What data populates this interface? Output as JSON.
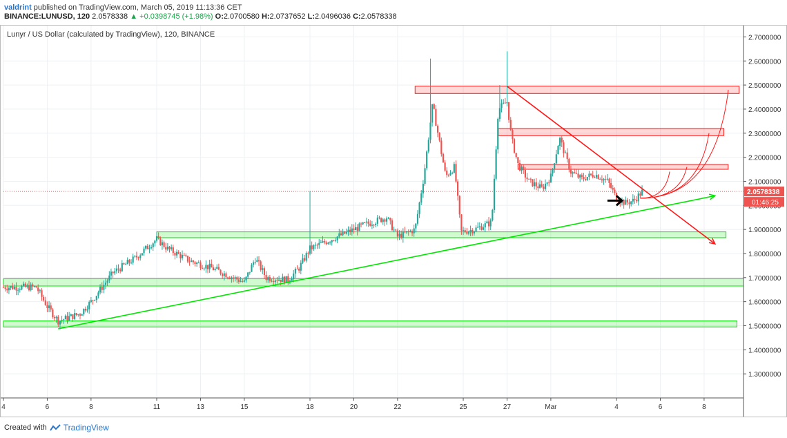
{
  "header": {
    "user": "valdrint",
    "published_text": "published on TradingView.com, March 05, 2019 11:13:36 CET",
    "symbol": "BINANCE:LUNUSD, 120",
    "last": "2.0578338",
    "change": "+0.0398745 (+1.98%)",
    "open_label": "O:",
    "open": "2.0700580",
    "high_label": "H:",
    "high": "2.0737652",
    "low_label": "L:",
    "low": "2.0496036",
    "close_label": "C:",
    "close": "2.0578338"
  },
  "chart_data": {
    "type": "candlestick",
    "title": "Lunyr / US Dollar (calculated by TradingView), 120, BINANCE",
    "ylim": [
      1.2,
      2.75
    ],
    "y_ticks": [
      {
        "value": 1.3,
        "label": "1.3000000"
      },
      {
        "value": 1.4,
        "label": "1.4000000"
      },
      {
        "value": 1.5,
        "label": "1.5000000"
      },
      {
        "value": 1.6,
        "label": "1.6000000"
      },
      {
        "value": 1.7,
        "label": "1.7000000"
      },
      {
        "value": 1.8,
        "label": "1.8000000"
      },
      {
        "value": 1.9,
        "label": "1.9000000"
      },
      {
        "value": 2.0,
        "label": "2.0000000"
      },
      {
        "value": 2.1,
        "label": "2.1000000"
      },
      {
        "value": 2.2,
        "label": "2.2000000"
      },
      {
        "value": 2.3,
        "label": "2.3000000"
      },
      {
        "value": 2.4,
        "label": "2.4000000"
      },
      {
        "value": 2.5,
        "label": "2.5000000"
      },
      {
        "value": 2.6,
        "label": "2.6000000"
      },
      {
        "value": 2.7,
        "label": "2.7000000"
      }
    ],
    "xlim": [
      4,
      37.8
    ],
    "x_ticks": [
      {
        "day": 4,
        "label": "4"
      },
      {
        "day": 6,
        "label": "6"
      },
      {
        "day": 8,
        "label": "8"
      },
      {
        "day": 11,
        "label": "11"
      },
      {
        "day": 13,
        "label": "13"
      },
      {
        "day": 15,
        "label": "15"
      },
      {
        "day": 18,
        "label": "18"
      },
      {
        "day": 20,
        "label": "20"
      },
      {
        "day": 22,
        "label": "22"
      },
      {
        "day": 25,
        "label": "25"
      },
      {
        "day": 27,
        "label": "27"
      },
      {
        "day": 29,
        "label": "Mar"
      },
      {
        "day": 32,
        "label": "4"
      },
      {
        "day": 34,
        "label": "6"
      },
      {
        "day": 36,
        "label": "8"
      }
    ],
    "price_key_points": [
      [
        4.0,
        1.66
      ],
      [
        5.5,
        1.66
      ],
      [
        6.0,
        1.58
      ],
      [
        6.5,
        1.52
      ],
      [
        7.5,
        1.55
      ],
      [
        8.0,
        1.6
      ],
      [
        9.0,
        1.72
      ],
      [
        10.0,
        1.78
      ],
      [
        11.0,
        1.86
      ],
      [
        11.5,
        1.82
      ],
      [
        12.5,
        1.77
      ],
      [
        13.5,
        1.74
      ],
      [
        14.5,
        1.7
      ],
      [
        15.0,
        1.68
      ],
      [
        15.5,
        1.78
      ],
      [
        16.0,
        1.7
      ],
      [
        17.0,
        1.69
      ],
      [
        17.5,
        1.74
      ],
      [
        18.0,
        1.82
      ],
      [
        18.5,
        1.84
      ],
      [
        19.5,
        1.88
      ],
      [
        20.5,
        1.92
      ],
      [
        21.5,
        1.95
      ],
      [
        22.0,
        1.87
      ],
      [
        22.8,
        1.9
      ],
      [
        23.2,
        2.12
      ],
      [
        23.6,
        2.42
      ],
      [
        24.2,
        2.12
      ],
      [
        24.6,
        2.16
      ],
      [
        24.9,
        1.89
      ],
      [
        25.5,
        1.9
      ],
      [
        26.3,
        1.93
      ],
      [
        26.6,
        2.4
      ],
      [
        27.0,
        2.43
      ],
      [
        27.2,
        2.28
      ],
      [
        27.5,
        2.17
      ],
      [
        28.0,
        2.1
      ],
      [
        28.6,
        2.07
      ],
      [
        29.0,
        2.12
      ],
      [
        29.4,
        2.28
      ],
      [
        29.9,
        2.14
      ],
      [
        30.4,
        2.11
      ],
      [
        31.0,
        2.13
      ],
      [
        31.6,
        2.1
      ],
      [
        32.0,
        2.03
      ],
      [
        32.4,
        2.01
      ],
      [
        32.8,
        2.02
      ],
      [
        33.2,
        2.06
      ]
    ],
    "support_zones": [
      {
        "from": 1.866,
        "to": 1.89,
        "start": 11.0,
        "end": 37.0
      },
      {
        "from": 1.665,
        "to": 1.695,
        "start": 4.0,
        "end": 37.8
      },
      {
        "from": 1.495,
        "to": 1.52,
        "start": 4.0,
        "end": 37.5
      }
    ],
    "resistance_zones": [
      {
        "from": 2.465,
        "to": 2.495,
        "start": 22.8,
        "end": 37.6
      },
      {
        "from": 2.29,
        "to": 2.32,
        "start": 26.6,
        "end": 36.9
      },
      {
        "from": 2.15,
        "to": 2.17,
        "start": 27.5,
        "end": 37.1
      }
    ],
    "support_trendline": {
      "start": [
        6.5,
        1.487
      ],
      "end": [
        36.5,
        2.04
      ]
    },
    "resistance_trendline": {
      "start": [
        27.0,
        2.495
      ],
      "end": [
        36.5,
        1.84
      ]
    },
    "current_price": {
      "value": 2.0578338,
      "label": "2.0578338",
      "countdown": "01:46:25"
    }
  },
  "footer": {
    "created_with": "Created with",
    "brand": "TradingView"
  },
  "colors": {
    "up_candle": "#26a69a",
    "down_candle": "#ef5350",
    "support": "#00e600",
    "resistance": "#ff1a1a",
    "price_line": "#ef5350"
  }
}
